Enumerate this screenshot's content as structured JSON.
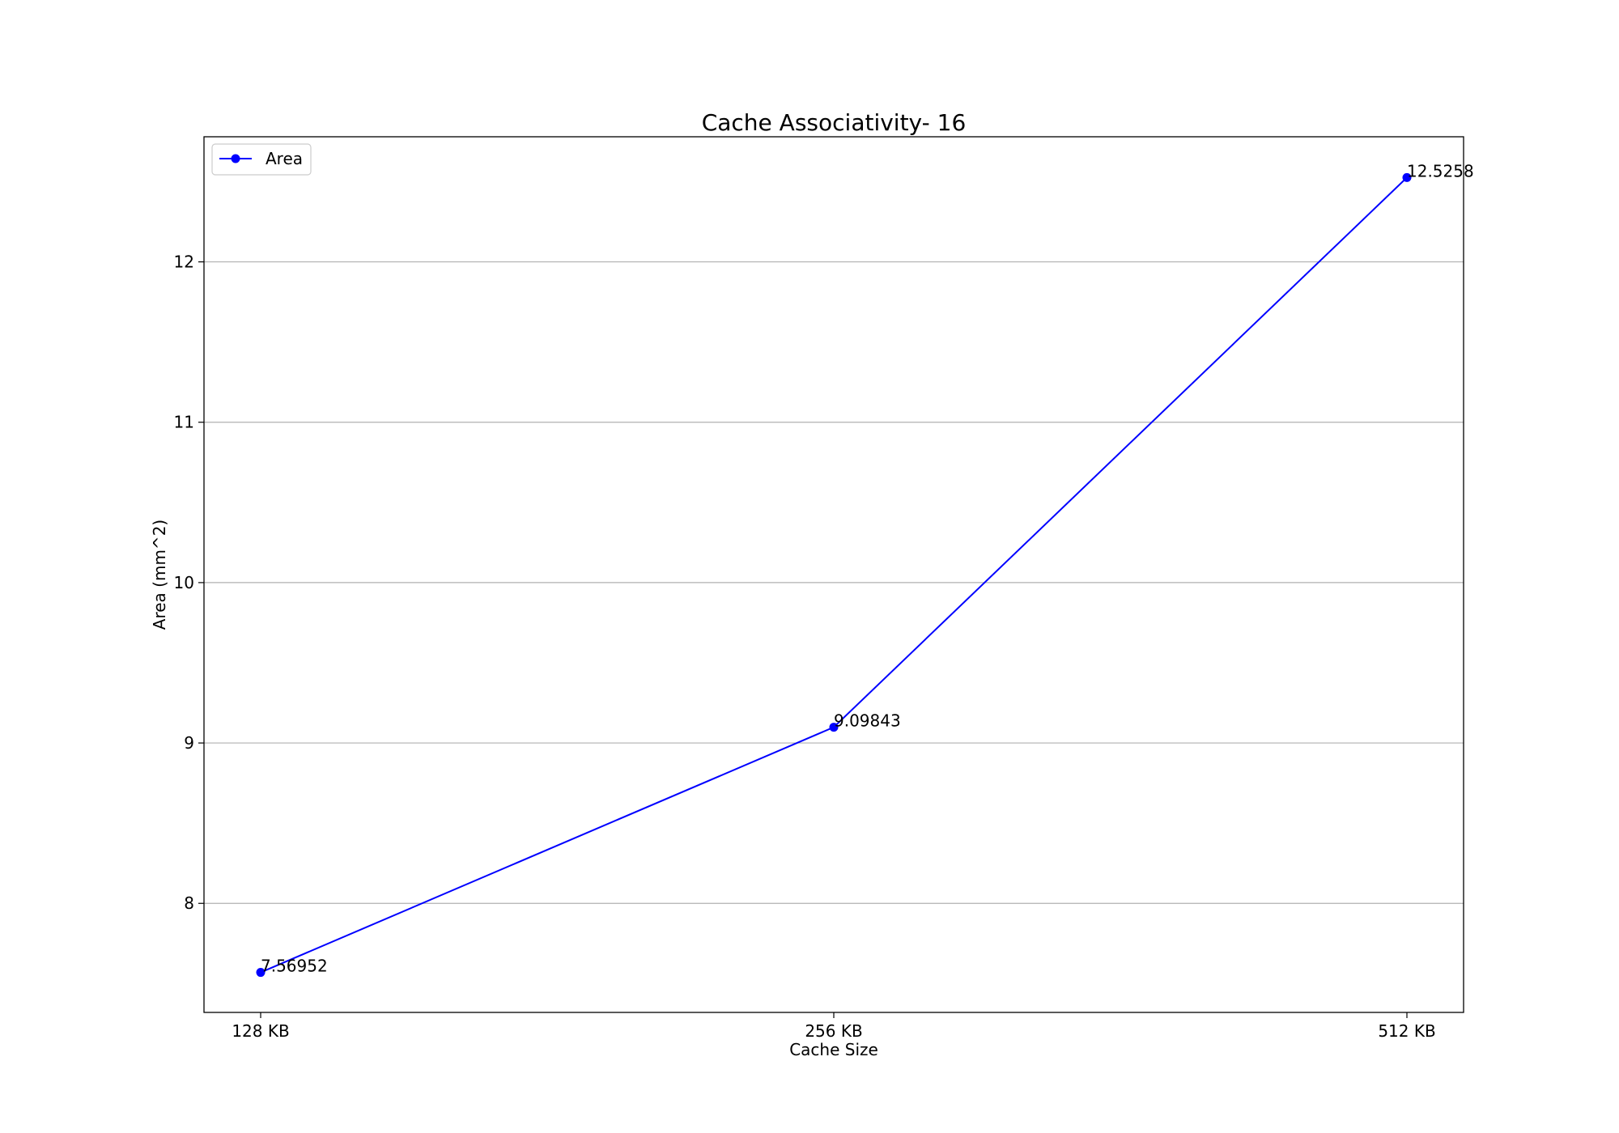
{
  "chart_data": {
    "type": "line",
    "title": "Cache Associativity- 16",
    "xlabel": "Cache Size",
    "ylabel": "Area (mm^2)",
    "categories": [
      "128 KB",
      "256 KB",
      "512 KB"
    ],
    "series": [
      {
        "name": "Area",
        "values": [
          7.56952,
          9.09843,
          12.5258
        ],
        "labels": [
          "7.56952",
          "9.09843",
          "12.5258"
        ],
        "color": "#0000ff",
        "marker": "circle"
      }
    ],
    "ylim": [
      7.32,
      12.78
    ],
    "yticks": [
      8,
      9,
      10,
      11,
      12
    ],
    "ytick_labels": [
      "8",
      "9",
      "10",
      "11",
      "12"
    ],
    "grid": "horizontal",
    "legend": "top-left"
  }
}
